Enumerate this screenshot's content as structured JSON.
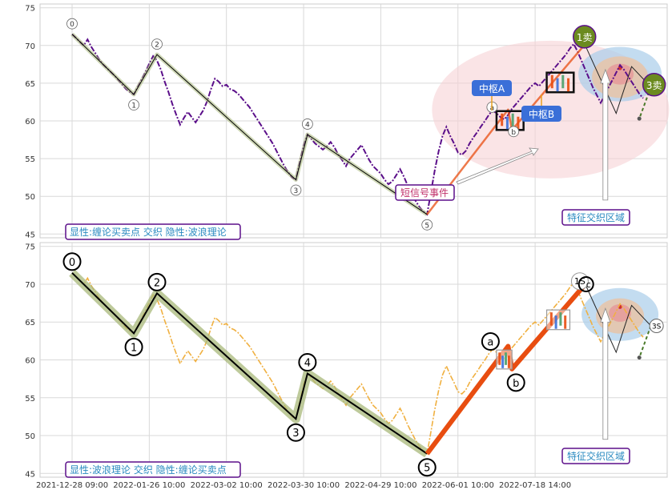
{
  "chart_data": [
    {
      "type": "line",
      "panel": "top",
      "ylim": [
        44.5,
        75.5
      ],
      "yticks": [
        45,
        50,
        55,
        60,
        65,
        70,
        75
      ],
      "grid": true,
      "price_color": "#5b0f8a",
      "price_style": "dash-dot",
      "series": [
        {
          "values": [
            71.5,
            71,
            70.5,
            70,
            70.8,
            69.8,
            69,
            68.2,
            67.5,
            67,
            66.5,
            66,
            65.4,
            64.8,
            64.2,
            63.8,
            63.5,
            64.5,
            65.5,
            66.5,
            67.6,
            68.6,
            68,
            66.8,
            65.2,
            63.8,
            62.2,
            60.8,
            59.5,
            60.4,
            61.2,
            60.5,
            59.8,
            60.6,
            61.4,
            62.6,
            64.2,
            65.6,
            65.2,
            64.6,
            64.8,
            64.2,
            64,
            63.6,
            63,
            62.4,
            61.8,
            61,
            60.2,
            59.4,
            58.6,
            57.8,
            57,
            56,
            55,
            54,
            53.2,
            52.5,
            52.2,
            54.5,
            56.8,
            58.2,
            57.6,
            57,
            56.6,
            56.2,
            56.6,
            57.2,
            56.5,
            55.5,
            54.8,
            54,
            55,
            55.6,
            56.2,
            56.8,
            55.8,
            54.8,
            54,
            53.5,
            53,
            52.2,
            51.6,
            52,
            52.8,
            53.6,
            52.6,
            51.4,
            50.4,
            49.4,
            48.6,
            48,
            47.6,
            50.5,
            53.5,
            56,
            58,
            59.2,
            58,
            57,
            55.8,
            55.5,
            56,
            57,
            57.8,
            58.5,
            59.3,
            60,
            60.8,
            61.4,
            61,
            60.5,
            60.2,
            60.8,
            61.6,
            62.2,
            62.8,
            63.4,
            64,
            64.6,
            65,
            64.6,
            65.2,
            65.8,
            66.4,
            67,
            67.6,
            68.2,
            68.8,
            69.6,
            70.2,
            69.2,
            68,
            66.8,
            65.6,
            64.4,
            63.4,
            62.4,
            63.4,
            64.4,
            65.4,
            66.4,
            67.4,
            66.8,
            66,
            65.2,
            64.4,
            63.6,
            63
          ]
        }
      ],
      "wave_points": [
        {
          "label": "0",
          "i": 0,
          "y": 71.5
        },
        {
          "label": "1",
          "i": 16,
          "y": 63.5
        },
        {
          "label": "2",
          "i": 22,
          "y": 68.8
        },
        {
          "label": "3",
          "i": 58,
          "y": 52.2
        },
        {
          "label": "4",
          "i": 61,
          "y": 58.2
        },
        {
          "label": "5",
          "i": 92,
          "y": 47.6
        }
      ],
      "chan_points": [
        {
          "label": "a",
          "i": 113,
          "y": 61.5
        },
        {
          "label": "b",
          "i": 114,
          "y": 58.8
        },
        {
          "label": "1卖",
          "i": 133,
          "y": 70.2
        },
        {
          "label": "3卖",
          "i": 150,
          "y": 64.8
        }
      ],
      "zhongshu": [
        {
          "name": "中枢A",
          "i0": 110,
          "i1": 117,
          "y0": 58.8,
          "y1": 61.3
        },
        {
          "name": "中枢B",
          "i0": 123,
          "i1": 130,
          "y0": 63.8,
          "y1": 66.4
        }
      ],
      "annotations": {
        "legend": "显性:缠论买卖点 交织 隐性:波浪理论",
        "short_signal": "短信号事件",
        "feature_zone": "特征交织区域"
      }
    },
    {
      "type": "line",
      "panel": "bottom",
      "ylim": [
        44.5,
        75.5
      ],
      "yticks": [
        45,
        50,
        55,
        60,
        65,
        70,
        75
      ],
      "grid": true,
      "price_color": "#f0b040",
      "price_style": "dash-dot",
      "series": [
        {
          "values": [
            71.5,
            71,
            70.5,
            70,
            70.8,
            69.8,
            69,
            68.2,
            67.5,
            67,
            66.5,
            66,
            65.4,
            64.8,
            64.2,
            63.8,
            63.5,
            64.5,
            65.5,
            66.5,
            67.6,
            68.6,
            68,
            66.8,
            65.2,
            63.8,
            62.2,
            60.8,
            59.5,
            60.4,
            61.2,
            60.5,
            59.8,
            60.6,
            61.4,
            62.6,
            64.2,
            65.6,
            65.2,
            64.6,
            64.8,
            64.2,
            64,
            63.6,
            63,
            62.4,
            61.8,
            61,
            60.2,
            59.4,
            58.6,
            57.8,
            57,
            56,
            55,
            54,
            53.2,
            52.5,
            52.2,
            54.5,
            56.8,
            58.2,
            57.6,
            57,
            56.6,
            56.2,
            56.6,
            57.2,
            56.5,
            55.5,
            54.8,
            54,
            55,
            55.6,
            56.2,
            56.8,
            55.8,
            54.8,
            54,
            53.5,
            53,
            52.2,
            51.6,
            52,
            52.8,
            53.6,
            52.6,
            51.4,
            50.4,
            49.4,
            48.6,
            48,
            47.6,
            50.5,
            53.5,
            56,
            58,
            59.2,
            58,
            57,
            55.8,
            55.5,
            56,
            57,
            57.8,
            58.5,
            59.3,
            60,
            60.8,
            61.4,
            61,
            60.5,
            60.2,
            60.8,
            61.6,
            62.2,
            62.8,
            63.4,
            64,
            64.6,
            65,
            64.6,
            65.2,
            65.8,
            66.4,
            67,
            67.6,
            68.2,
            68.8,
            69.6,
            70.2,
            69.2,
            68,
            66.8,
            65.6,
            64.4,
            63.4,
            62.4,
            63.4,
            64.4,
            65.4,
            66.4,
            67.4,
            66.8,
            66,
            65.2,
            64.4,
            63.6,
            63
          ]
        }
      ],
      "wave_points": [
        {
          "label": "0",
          "i": 0,
          "y": 71.5
        },
        {
          "label": "1",
          "i": 16,
          "y": 63.5
        },
        {
          "label": "2",
          "i": 22,
          "y": 68.8
        },
        {
          "label": "3",
          "i": 58,
          "y": 52.2
        },
        {
          "label": "4",
          "i": 61,
          "y": 58.2
        },
        {
          "label": "5",
          "i": 92,
          "y": 47.6
        }
      ],
      "chan_points": [
        {
          "label": "a",
          "i": 113,
          "y": 61.8
        },
        {
          "label": "b",
          "i": 114,
          "y": 58.8
        },
        {
          "label": "1S",
          "i": 132,
          "y": 70.4
        },
        {
          "label": "c",
          "i": 133,
          "y": 70
        },
        {
          "label": "3S",
          "i": 150,
          "y": 64.5
        }
      ],
      "annotations": {
        "legend": "显性:波浪理论 交织 隐性:缠论买卖点",
        "feature_zone": "特征交织区域"
      }
    }
  ],
  "x_axis": {
    "tick_labels": [
      "2021-12-28 09:00",
      "2022-01-26 10:00",
      "2022-03-02 10:00",
      "2022-03-30 10:00",
      "2022-04-29 10:00",
      "2022-06-01 10:00",
      "2022-07-18 14:00"
    ],
    "tick_index": [
      0,
      20,
      40,
      60,
      80,
      100,
      120
    ]
  },
  "colors": {
    "wave_line": "#000000",
    "wave_band": "#a8b87a",
    "chan_up": "#e84d10",
    "sell_marker": "#6b8a1f",
    "zhongshu_label_bg": "#3a6fd8",
    "annotation_border": "#5b0f8a",
    "annotation_text": "#2a8ac0"
  }
}
